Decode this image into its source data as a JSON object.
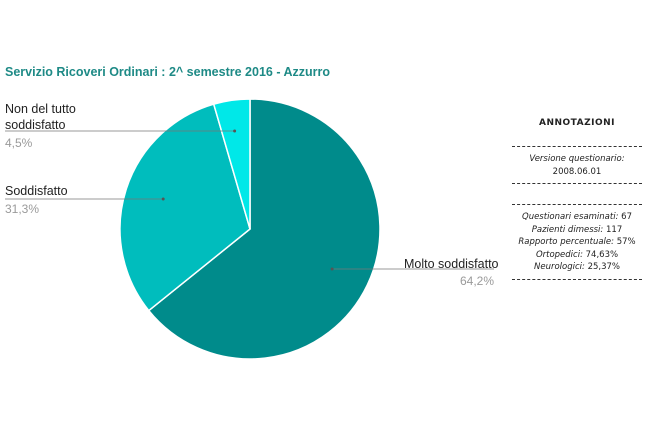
{
  "chart_data": {
    "type": "pie",
    "title": "Servizio Ricoveri Ordinari : 2^ semestre 2016 - Azzurro",
    "slices": [
      {
        "label": "Molto soddisfatto",
        "value": 64.2,
        "value_label": "64,2%",
        "color": "#008b8b"
      },
      {
        "label": "Soddisfatto",
        "value": 31.3,
        "value_label": "31,3%",
        "color": "#00bdbd"
      },
      {
        "label": "Non del tutto soddisfatto",
        "label_lines": [
          "Non del tutto",
          "soddisfatto"
        ],
        "value": 4.5,
        "value_label": "4,5%",
        "color": "#00e8e8"
      }
    ]
  },
  "annotations": {
    "title": "ANNOTAZIONI",
    "version_label": "Versione questionario:",
    "version_value": "2008.06.01",
    "items": [
      {
        "label": "Questionari esaminati:",
        "value": "67"
      },
      {
        "label": "Pazienti dimessi:",
        "value": "117"
      },
      {
        "label": "Rapporto percentuale:",
        "value": "57%"
      },
      {
        "label": "Ortopedici:",
        "value": "74,63%"
      },
      {
        "label": "Neurologici:",
        "value": "25,37%"
      }
    ]
  }
}
